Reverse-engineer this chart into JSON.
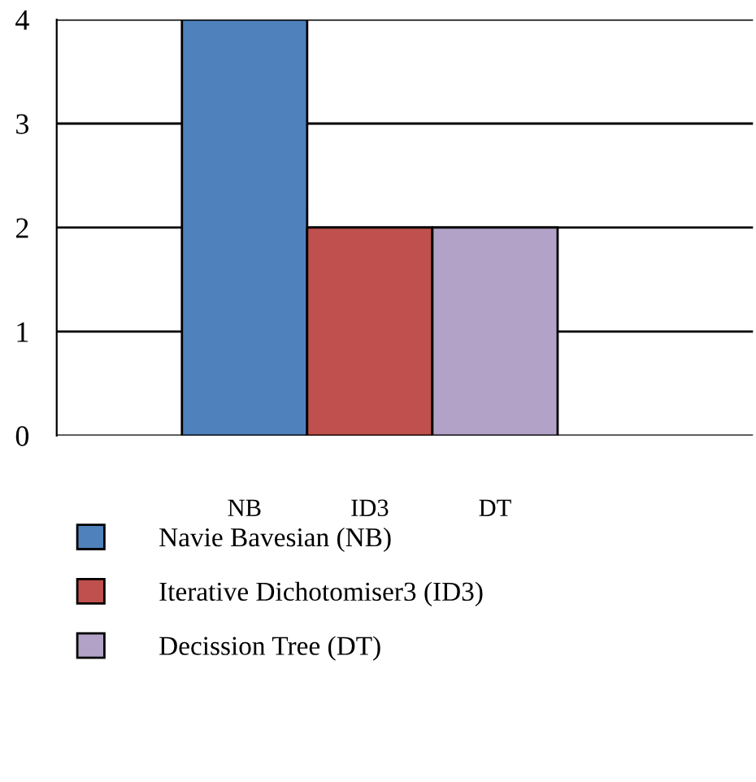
{
  "chart_data": {
    "type": "bar",
    "categories": [
      "NB",
      "ID3",
      "DT"
    ],
    "series": [
      {
        "name": "Navie Bavesian (NB)",
        "color": "#4f81bd",
        "values": [
          4,
          null,
          null
        ]
      },
      {
        "name": "Iterative Dichotomiser3 (ID3)",
        "color": "#c0504d",
        "values": [
          null,
          2,
          null
        ]
      },
      {
        "name": "Decission Tree (DT)",
        "color": "#b2a2c7",
        "values": [
          null,
          null,
          2
        ]
      }
    ],
    "ylim": [
      0,
      4
    ],
    "yticks": [
      0,
      1,
      2,
      3,
      4
    ],
    "grid": "y",
    "legend": "bottom"
  }
}
